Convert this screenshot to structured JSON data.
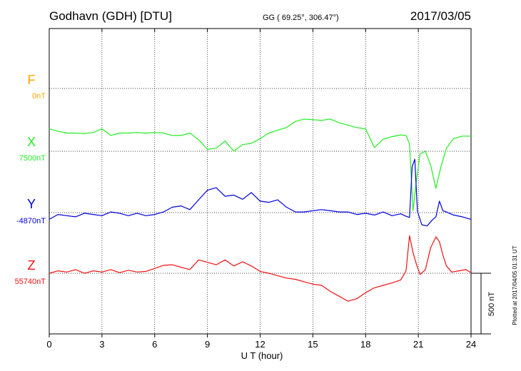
{
  "header": {
    "station": "Godhavn (GDH)  [DTU]",
    "coords": "GG ( 69.25°, 306.47°)",
    "date": "2017/03/05"
  },
  "footer": {
    "xlabel": "U T (hour)",
    "plotted": "Plotted at 2017/04/05 01:31  UT",
    "scale_label": "500 nT"
  },
  "chart_data": {
    "type": "line",
    "xlabel": "U T (hour)",
    "xlim": [
      0,
      24
    ],
    "xticks": [
      "0",
      "3",
      "6",
      "9",
      "12",
      "15",
      "18",
      "21",
      "24"
    ],
    "grid": true,
    "scale_bar_nT": 500,
    "series": [
      {
        "name": "F",
        "baseline_label": "0nT",
        "color": "#ffa500",
        "x": [],
        "y": []
      },
      {
        "name": "X",
        "baseline_label": "7500nT",
        "color": "#22ee22",
        "x": [
          0,
          0.5,
          1,
          1.5,
          2,
          2.5,
          3,
          3.5,
          4,
          4.5,
          5,
          5.5,
          6,
          6.5,
          7,
          7.5,
          8,
          8.5,
          9,
          9.5,
          10,
          10.5,
          11,
          11.5,
          12,
          12.5,
          13,
          13.5,
          14,
          14.5,
          15,
          15.5,
          16,
          16.5,
          17,
          17.5,
          18,
          18.5,
          19,
          19.5,
          20,
          20.3,
          20.5,
          20.7,
          20.9,
          21.1,
          21.4,
          21.7,
          22,
          22.3,
          22.6,
          23,
          23.5,
          24
        ],
        "y": [
          185,
          165,
          150,
          150,
          145,
          155,
          185,
          130,
          150,
          150,
          155,
          150,
          155,
          150,
          130,
          130,
          150,
          95,
          15,
          25,
          85,
          0,
          55,
          65,
          105,
          150,
          175,
          195,
          245,
          265,
          260,
          255,
          265,
          235,
          215,
          195,
          185,
          30,
          100,
          120,
          135,
          130,
          60,
          -490,
          -230,
          -20,
          0,
          -115,
          -305,
          -120,
          25,
          105,
          125,
          125
        ]
      },
      {
        "name": "Y",
        "baseline_label": "-4870nT",
        "color": "#0000dd",
        "x": [
          0,
          0.5,
          1,
          1.5,
          2,
          2.5,
          3,
          3.5,
          4,
          4.5,
          5,
          5.5,
          6,
          6.5,
          7,
          7.5,
          8,
          8.5,
          9,
          9.5,
          10,
          10.5,
          11,
          11.5,
          12,
          12.5,
          13,
          13.5,
          14,
          14.5,
          15,
          15.5,
          16,
          16.5,
          17,
          17.5,
          18,
          18.5,
          19,
          19.5,
          20,
          20.3,
          20.5,
          20.65,
          20.8,
          20.95,
          21.2,
          21.5,
          21.8,
          22,
          22.2,
          22.4,
          22.6,
          23,
          23.5,
          24
        ],
        "y": [
          -55,
          -15,
          -25,
          -35,
          -5,
          -15,
          -25,
          5,
          -5,
          -25,
          -5,
          -25,
          -15,
          5,
          45,
          55,
          25,
          105,
          185,
          205,
          135,
          145,
          110,
          165,
          95,
          85,
          105,
          45,
          5,
          5,
          15,
          25,
          15,
          5,
          5,
          -15,
          -5,
          -20,
          5,
          -25,
          -10,
          -30,
          -40,
          380,
          440,
          10,
          -100,
          -110,
          -60,
          -35,
          95,
          15,
          5,
          -20,
          -35,
          -55
        ]
      },
      {
        "name": "Z",
        "baseline_label": "55740nT",
        "color": "#ee1111",
        "x": [
          0,
          0.5,
          1,
          1.5,
          2,
          2.5,
          3,
          3.5,
          4,
          4.5,
          5,
          5.5,
          6,
          6.5,
          7,
          7.5,
          8,
          8.5,
          9,
          9.5,
          10,
          10.5,
          11,
          11.5,
          12,
          12.5,
          13,
          13.5,
          14,
          14.5,
          15,
          15.5,
          16,
          16.5,
          17,
          17.5,
          18,
          18.5,
          19,
          19.5,
          20,
          20.3,
          20.5,
          20.7,
          20.9,
          21.1,
          21.4,
          21.7,
          22,
          22.2,
          22.4,
          22.6,
          22.9,
          23.3,
          23.7,
          24
        ],
        "y": [
          0,
          20,
          10,
          30,
          0,
          20,
          10,
          30,
          5,
          25,
          10,
          15,
          40,
          65,
          70,
          50,
          30,
          110,
          90,
          70,
          110,
          60,
          95,
          60,
          15,
          0,
          -20,
          -40,
          -50,
          -70,
          -90,
          -100,
          -150,
          -190,
          -230,
          -210,
          -160,
          -120,
          -100,
          -80,
          -55,
          20,
          310,
          170,
          70,
          -10,
          30,
          210,
          300,
          260,
          150,
          60,
          10,
          20,
          30,
          5
        ]
      }
    ]
  }
}
